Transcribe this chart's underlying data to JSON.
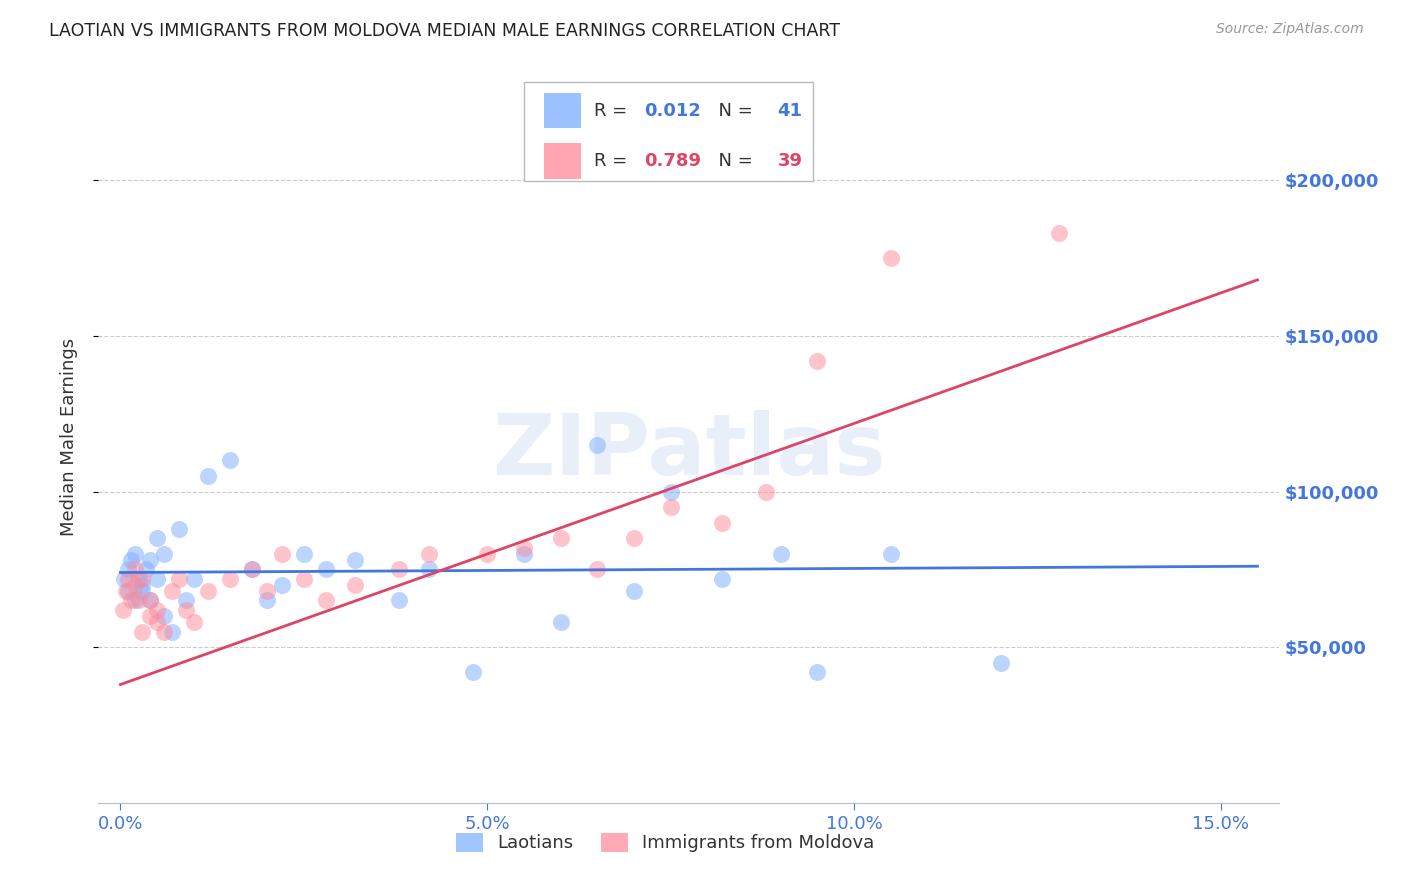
{
  "title": "LAOTIAN VS IMMIGRANTS FROM MOLDOVA MEDIAN MALE EARNINGS CORRELATION CHART",
  "source": "Source: ZipAtlas.com",
  "ylabel": "Median Male Earnings",
  "xlabel_ticks": [
    "0.0%",
    "5.0%",
    "10.0%",
    "15.0%"
  ],
  "xlabel_tick_vals": [
    0.0,
    0.05,
    0.1,
    0.15
  ],
  "ytick_labels": [
    "$50,000",
    "$100,000",
    "$150,000",
    "$200,000"
  ],
  "ytick_vals": [
    50000,
    100000,
    150000,
    200000
  ],
  "xlim": [
    -0.003,
    0.158
  ],
  "ylim": [
    0,
    235000
  ],
  "blue_color": "#7aadff",
  "pink_color": "#ff8899",
  "blue_line_color": "#4477dd",
  "pink_line_color": "#dd4466",
  "title_color": "#222222",
  "axis_label_color": "#4477dd",
  "watermark": "ZIPatlas",
  "legend_R_blue": "0.012",
  "legend_N_blue": "41",
  "legend_R_pink": "0.789",
  "legend_N_pink": "39",
  "laotians_x": [
    0.0005,
    0.001,
    0.001,
    0.0015,
    0.002,
    0.002,
    0.0025,
    0.003,
    0.003,
    0.0035,
    0.004,
    0.004,
    0.005,
    0.005,
    0.006,
    0.006,
    0.007,
    0.008,
    0.009,
    0.01,
    0.012,
    0.015,
    0.018,
    0.02,
    0.022,
    0.025,
    0.028,
    0.032,
    0.038,
    0.042,
    0.048,
    0.055,
    0.06,
    0.065,
    0.07,
    0.075,
    0.082,
    0.09,
    0.095,
    0.105,
    0.12
  ],
  "laotians_y": [
    72000,
    75000,
    68000,
    78000,
    65000,
    80000,
    72000,
    70000,
    68000,
    75000,
    78000,
    65000,
    72000,
    85000,
    80000,
    60000,
    55000,
    88000,
    65000,
    72000,
    105000,
    110000,
    75000,
    65000,
    70000,
    80000,
    75000,
    78000,
    65000,
    75000,
    42000,
    80000,
    58000,
    115000,
    68000,
    100000,
    72000,
    80000,
    42000,
    80000,
    45000
  ],
  "moldova_x": [
    0.0003,
    0.0008,
    0.001,
    0.0015,
    0.002,
    0.002,
    0.0025,
    0.003,
    0.003,
    0.004,
    0.004,
    0.005,
    0.005,
    0.006,
    0.007,
    0.008,
    0.009,
    0.01,
    0.012,
    0.015,
    0.018,
    0.02,
    0.022,
    0.025,
    0.028,
    0.032,
    0.038,
    0.042,
    0.05,
    0.055,
    0.06,
    0.065,
    0.07,
    0.075,
    0.082,
    0.088,
    0.095,
    0.105,
    0.128
  ],
  "moldova_y": [
    62000,
    68000,
    72000,
    65000,
    70000,
    75000,
    65000,
    72000,
    55000,
    60000,
    65000,
    62000,
    58000,
    55000,
    68000,
    72000,
    62000,
    58000,
    68000,
    72000,
    75000,
    68000,
    80000,
    72000,
    65000,
    70000,
    75000,
    80000,
    80000,
    82000,
    85000,
    75000,
    85000,
    95000,
    90000,
    100000,
    142000,
    175000,
    183000
  ],
  "blue_trendline_x": [
    0.0,
    0.155
  ],
  "blue_trendline_y": [
    74000,
    76000
  ],
  "pink_trendline_x": [
    0.0,
    0.155
  ],
  "pink_trendline_y": [
    38000,
    168000
  ],
  "background_color": "#ffffff",
  "grid_color": "#cccccc",
  "marker_size": 150,
  "marker_alpha": 0.5
}
